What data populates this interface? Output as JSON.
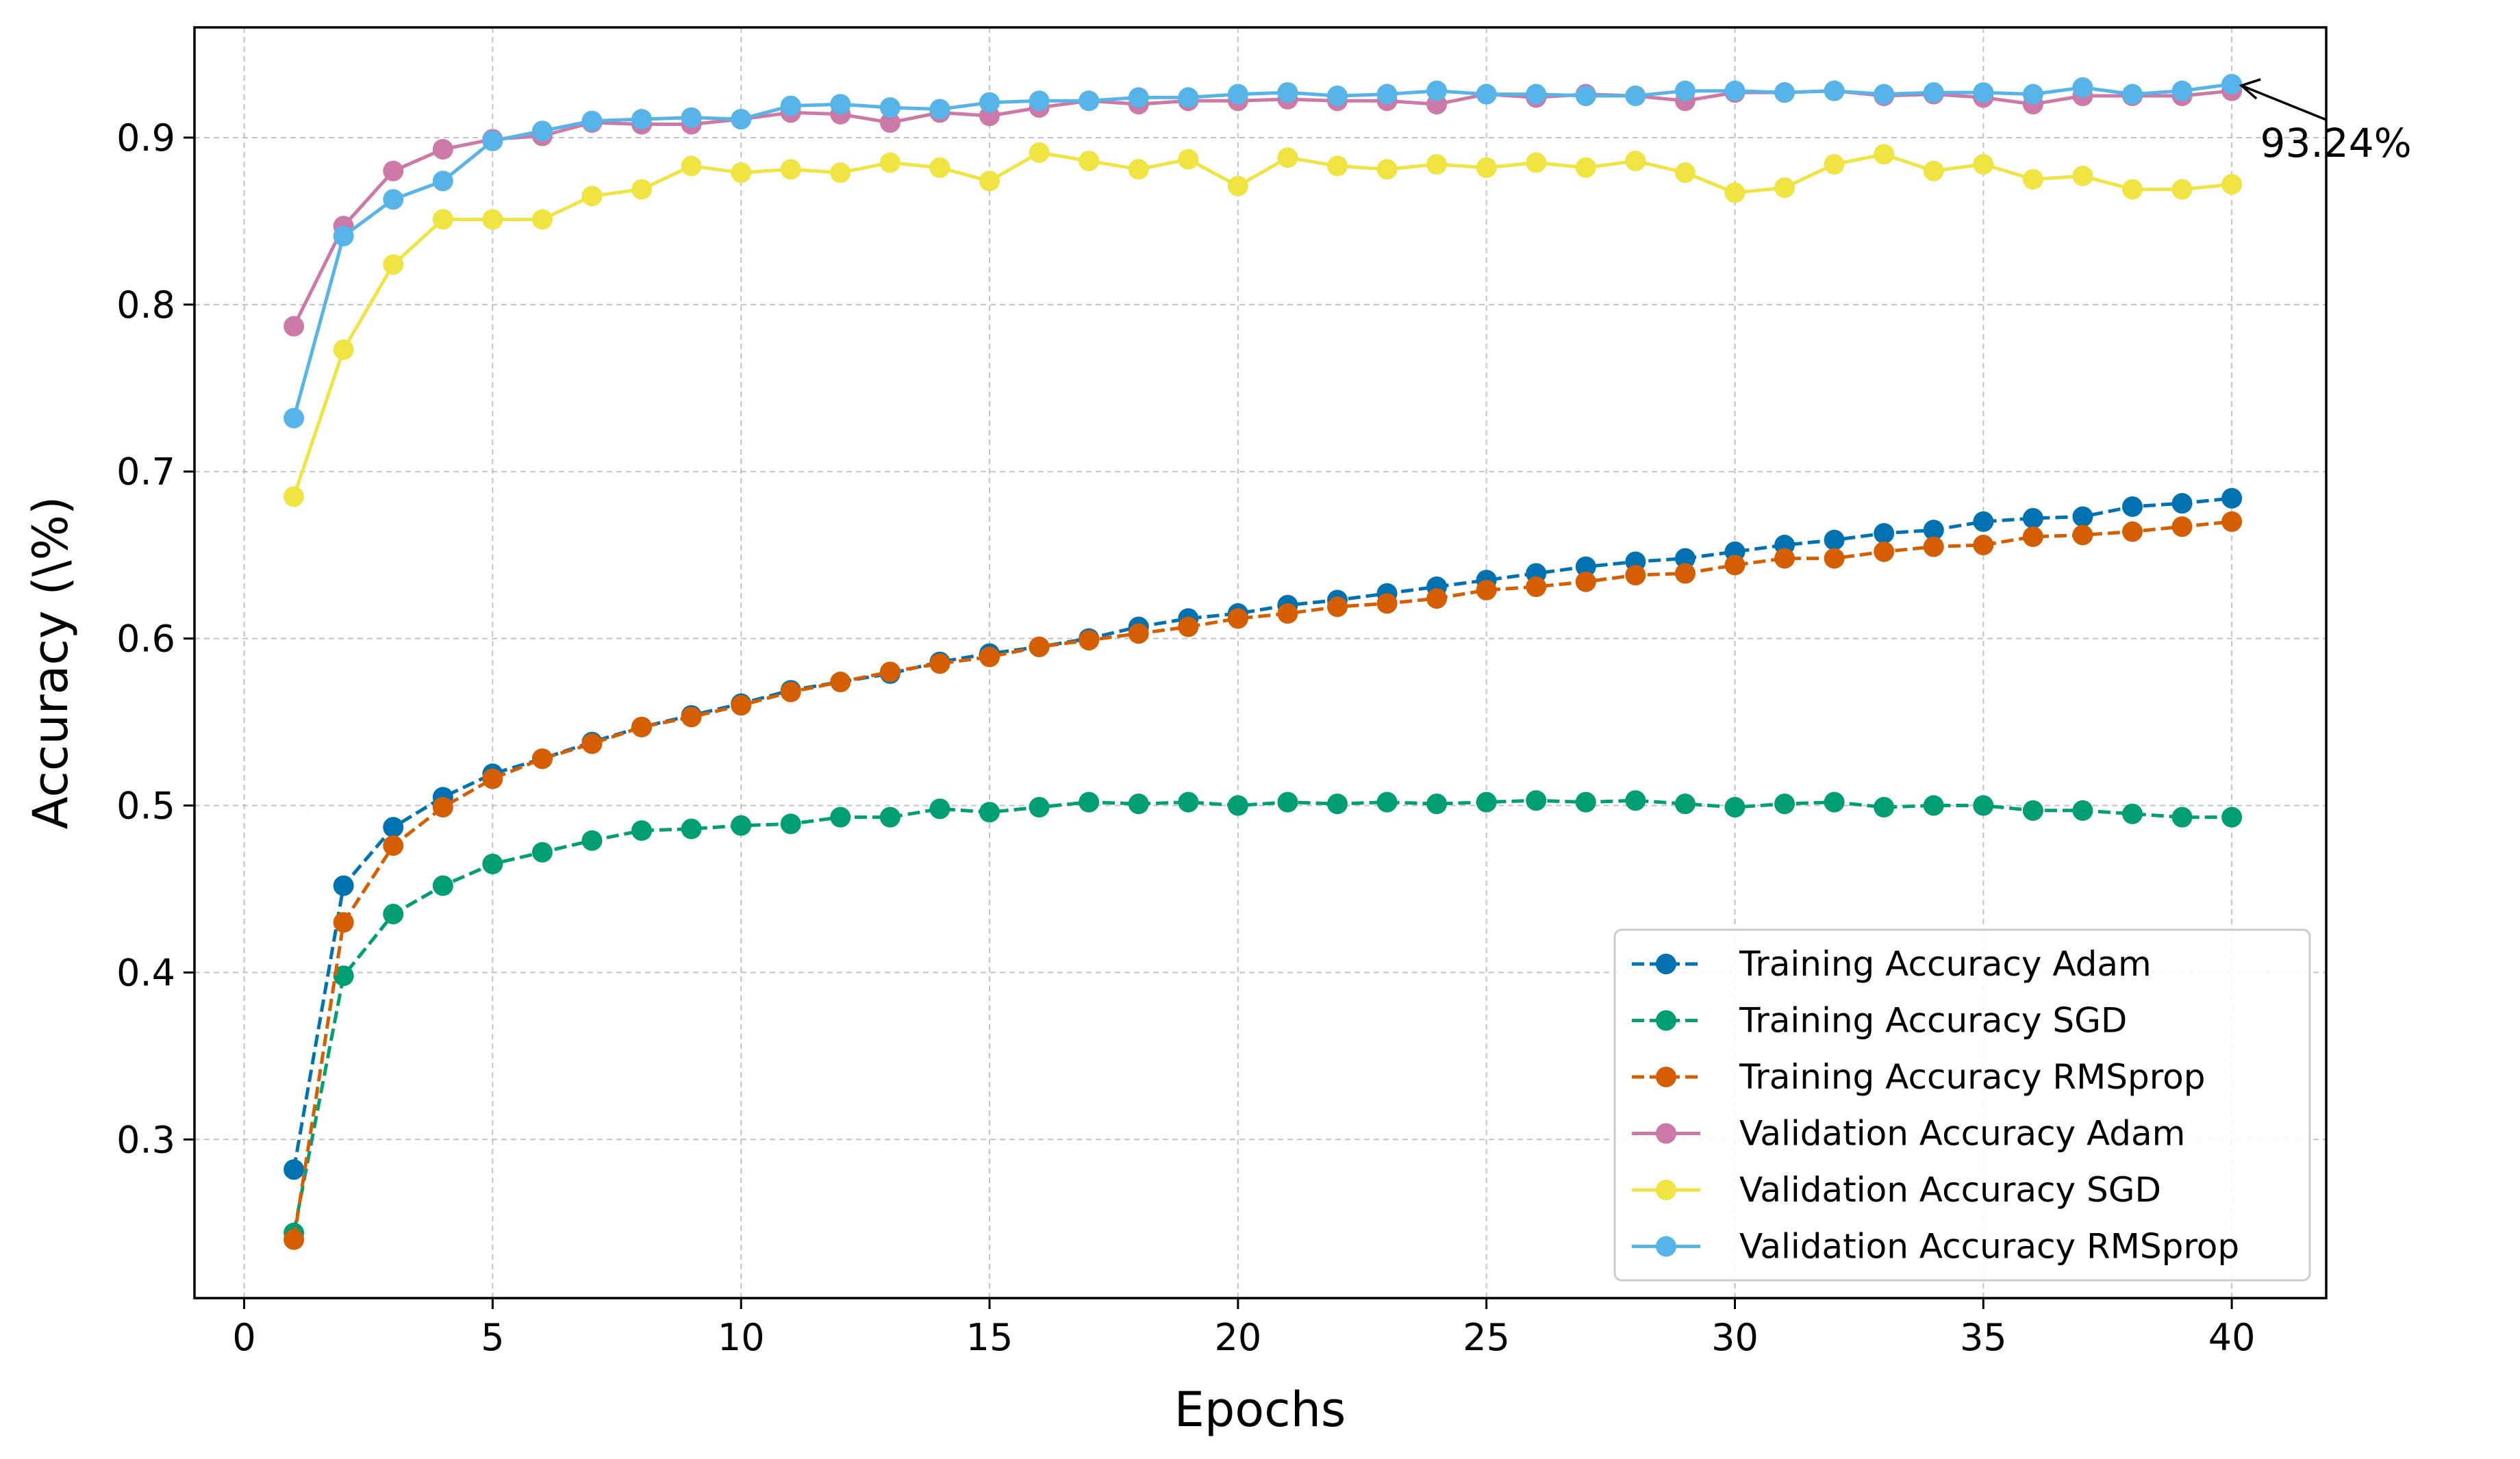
{
  "chart_data": {
    "type": "line",
    "title": "",
    "xlabel": "Epochs",
    "ylabel": "Accuracy (\\%)",
    "xlim": [
      -1,
      41.9
    ],
    "ylim": [
      0.205,
      0.966
    ],
    "xticks": [
      0,
      5,
      10,
      15,
      20,
      25,
      30,
      35,
      40
    ],
    "yticks": [
      0.3,
      0.4,
      0.5,
      0.6,
      0.7,
      0.8,
      0.9
    ],
    "grid": true,
    "legend_position": "lower-right",
    "x": [
      1,
      2,
      3,
      4,
      5,
      6,
      7,
      8,
      9,
      10,
      11,
      12,
      13,
      14,
      15,
      16,
      17,
      18,
      19,
      20,
      21,
      22,
      23,
      24,
      25,
      26,
      27,
      28,
      29,
      30,
      31,
      32,
      33,
      34,
      35,
      36,
      37,
      38,
      39,
      40
    ],
    "series": [
      {
        "name": "Training Accuracy Adam",
        "color": "#0072B2",
        "style": "dashed",
        "values": [
          0.282,
          0.452,
          0.487,
          0.505,
          0.519,
          0.528,
          0.538,
          0.547,
          0.554,
          0.561,
          0.569,
          0.574,
          0.579,
          0.586,
          0.591,
          0.595,
          0.6,
          0.607,
          0.612,
          0.615,
          0.62,
          0.623,
          0.627,
          0.631,
          0.635,
          0.639,
          0.643,
          0.646,
          0.648,
          0.652,
          0.656,
          0.659,
          0.663,
          0.665,
          0.67,
          0.672,
          0.673,
          0.679,
          0.681,
          0.684
        ]
      },
      {
        "name": "Training Accuracy SGD",
        "color": "#009E73",
        "style": "dashed",
        "values": [
          0.244,
          0.398,
          0.435,
          0.452,
          0.465,
          0.472,
          0.479,
          0.485,
          0.486,
          0.488,
          0.489,
          0.493,
          0.493,
          0.498,
          0.496,
          0.499,
          0.502,
          0.501,
          0.502,
          0.5,
          0.502,
          0.501,
          0.502,
          0.501,
          0.502,
          0.503,
          0.502,
          0.503,
          0.501,
          0.499,
          0.501,
          0.502,
          0.499,
          0.5,
          0.5,
          0.497,
          0.497,
          0.495,
          0.493,
          0.493
        ]
      },
      {
        "name": "Training Accuracy RMSprop",
        "color": "#D55E00",
        "style": "dashed",
        "values": [
          0.24,
          0.43,
          0.476,
          0.499,
          0.516,
          0.528,
          0.537,
          0.547,
          0.553,
          0.56,
          0.568,
          0.574,
          0.58,
          0.585,
          0.589,
          0.595,
          0.599,
          0.603,
          0.607,
          0.612,
          0.615,
          0.619,
          0.621,
          0.624,
          0.629,
          0.631,
          0.634,
          0.638,
          0.639,
          0.644,
          0.648,
          0.648,
          0.652,
          0.655,
          0.656,
          0.661,
          0.662,
          0.664,
          0.667,
          0.67
        ]
      },
      {
        "name": "Validation Accuracy Adam",
        "color": "#CC79A7",
        "style": "solid",
        "values": [
          0.787,
          0.847,
          0.88,
          0.893,
          0.899,
          0.901,
          0.909,
          0.908,
          0.908,
          0.911,
          0.915,
          0.914,
          0.909,
          0.915,
          0.913,
          0.918,
          0.922,
          0.92,
          0.922,
          0.922,
          0.923,
          0.922,
          0.922,
          0.92,
          0.926,
          0.924,
          0.926,
          0.925,
          0.922,
          0.927,
          0.927,
          0.928,
          0.925,
          0.926,
          0.924,
          0.92,
          0.925,
          0.925,
          0.925,
          0.928
        ]
      },
      {
        "name": "Validation Accuracy SGD",
        "color": "#F0E442",
        "style": "solid",
        "values": [
          0.685,
          0.773,
          0.824,
          0.851,
          0.851,
          0.851,
          0.865,
          0.869,
          0.883,
          0.879,
          0.881,
          0.879,
          0.885,
          0.882,
          0.874,
          0.891,
          0.886,
          0.881,
          0.887,
          0.871,
          0.888,
          0.883,
          0.881,
          0.884,
          0.882,
          0.885,
          0.882,
          0.886,
          0.879,
          0.867,
          0.87,
          0.884,
          0.89,
          0.88,
          0.884,
          0.875,
          0.877,
          0.869,
          0.869,
          0.872
        ]
      },
      {
        "name": "Validation Accuracy RMSprop",
        "color": "#56B4E9",
        "style": "solid",
        "values": [
          0.732,
          0.841,
          0.863,
          0.874,
          0.898,
          0.904,
          0.91,
          0.911,
          0.912,
          0.911,
          0.919,
          0.92,
          0.918,
          0.917,
          0.921,
          0.922,
          0.922,
          0.924,
          0.924,
          0.926,
          0.927,
          0.925,
          0.926,
          0.928,
          0.926,
          0.926,
          0.925,
          0.925,
          0.928,
          0.928,
          0.927,
          0.928,
          0.926,
          0.927,
          0.927,
          0.926,
          0.93,
          0.926,
          0.928,
          0.932
        ]
      }
    ],
    "annotations": [
      {
        "text": "93.24%",
        "x": 40,
        "y": 0.9324
      }
    ]
  }
}
